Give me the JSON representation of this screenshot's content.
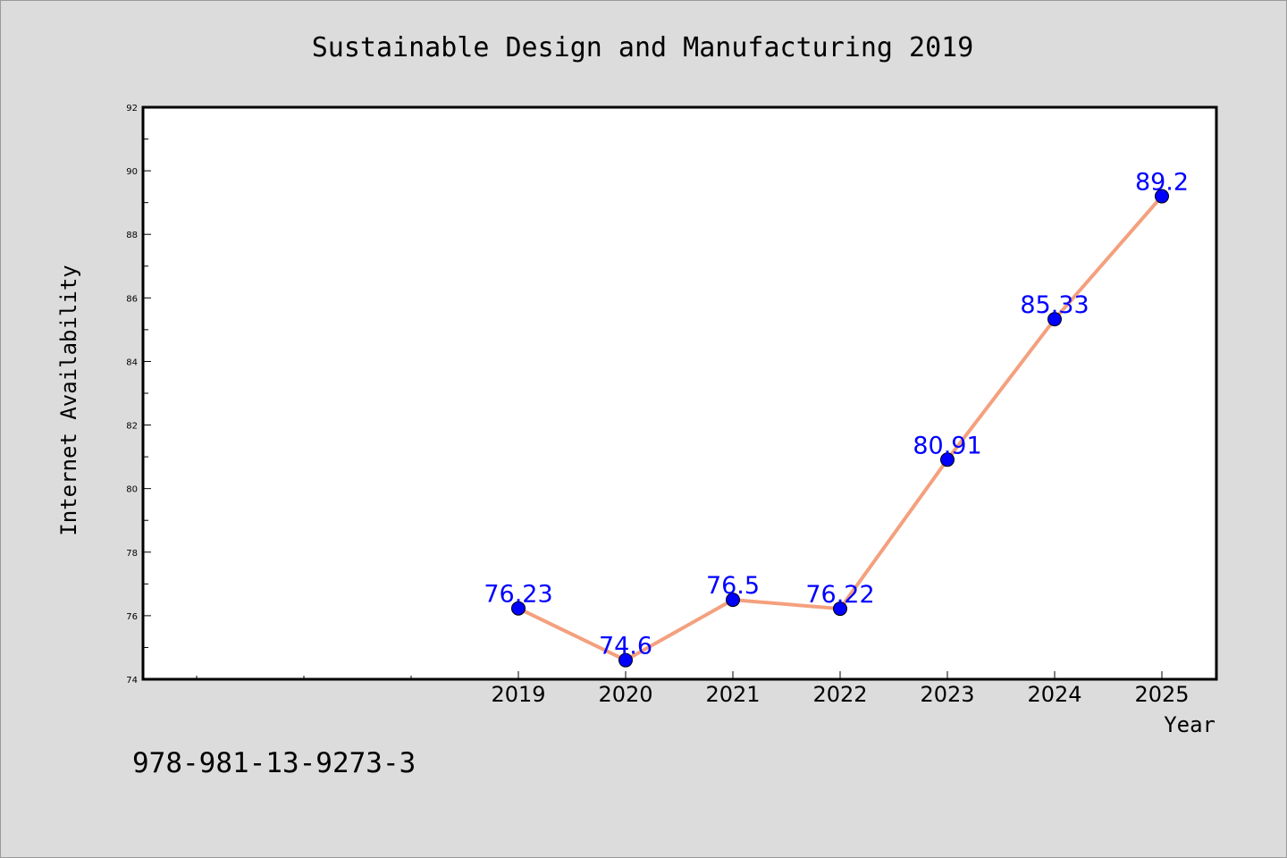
{
  "chart_data": {
    "type": "line",
    "title": "Sustainable Design and Manufacturing 2019",
    "xlabel": "Year",
    "ylabel": "Internet Availability",
    "x": [
      "2019",
      "2020",
      "2021",
      "2022",
      "2023",
      "2024",
      "2025"
    ],
    "series": [
      {
        "values": [
          76.23,
          74.6,
          76.5,
          76.22,
          80.91,
          85.33,
          89.2
        ],
        "labels": [
          "76.23",
          "74.6",
          "76.5",
          "76.22",
          "80.91",
          "85.33",
          "89.2"
        ],
        "line_color": "#f4a07e",
        "marker_color": "#0000ff"
      }
    ],
    "ylim": [
      74,
      92
    ],
    "yticks": [
      "74",
      "76",
      "78",
      "80",
      "82",
      "84",
      "86",
      "88",
      "90",
      "92"
    ],
    "grid": false,
    "legend": "none"
  },
  "footnote": "978-981-13-9273-3",
  "colors": {
    "background": "#dcdcdc",
    "plot_area": "#ffffff",
    "data_label": "#0000ff"
  }
}
